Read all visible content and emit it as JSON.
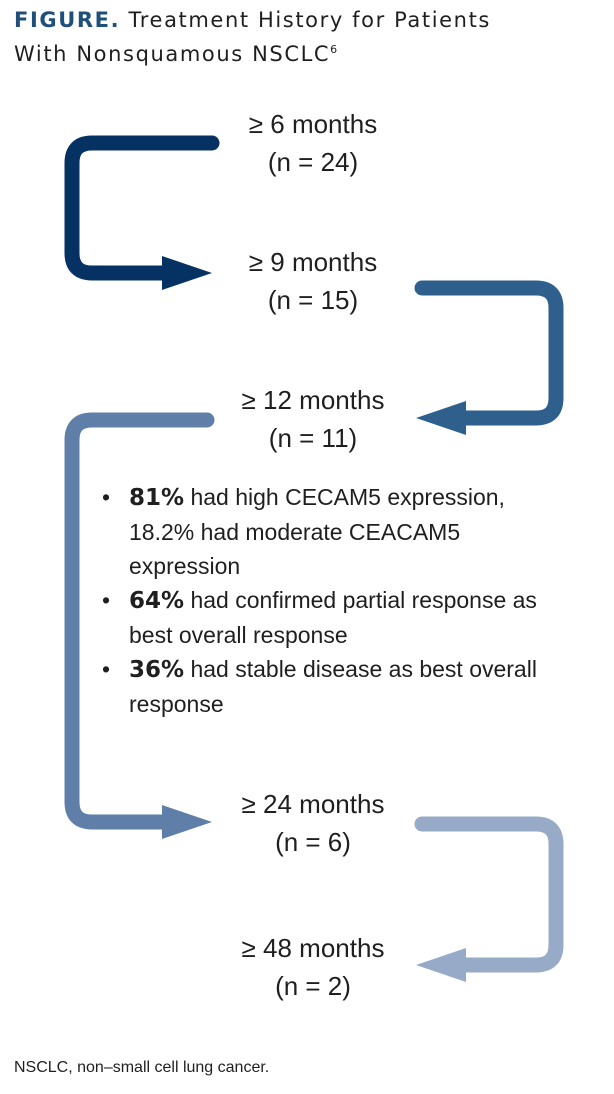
{
  "figure": {
    "label": "FIGURE.",
    "title_line1": "Treatment History for Patients",
    "title_line2": "With Nonsquamous NSCLC",
    "reference": "6"
  },
  "stages": [
    {
      "duration": "≥ 6 months",
      "count": "(n = 24)",
      "n": 24
    },
    {
      "duration": "≥ 9 months",
      "count": "(n = 15)",
      "n": 15
    },
    {
      "duration": "≥ 12 months",
      "count": "(n = 11)",
      "n": 11
    },
    {
      "duration": "≥ 24 months",
      "count": "(n = 6)",
      "n": 6
    },
    {
      "duration": "≥ 48 months",
      "count": "(n = 2)",
      "n": 2
    }
  ],
  "bullets": [
    {
      "bold": "81%",
      "text": " had high CECAM5 expression, 18.2% had moderate CEACAM5 expression"
    },
    {
      "bold": "64%",
      "text": " had confirmed partial response as best overall response"
    },
    {
      "bold": "36%",
      "text": " had stable disease as best overall response"
    }
  ],
  "colors": {
    "arrow_1": "#063263",
    "arrow_2": "#2e5f8d",
    "arrow_3": "#5f7fa9",
    "arrow_4": "#97abc9",
    "title_label": "#1f4f7a",
    "text": "#1f1f1f"
  },
  "footnote": "NSCLC, non–small cell lung cancer."
}
